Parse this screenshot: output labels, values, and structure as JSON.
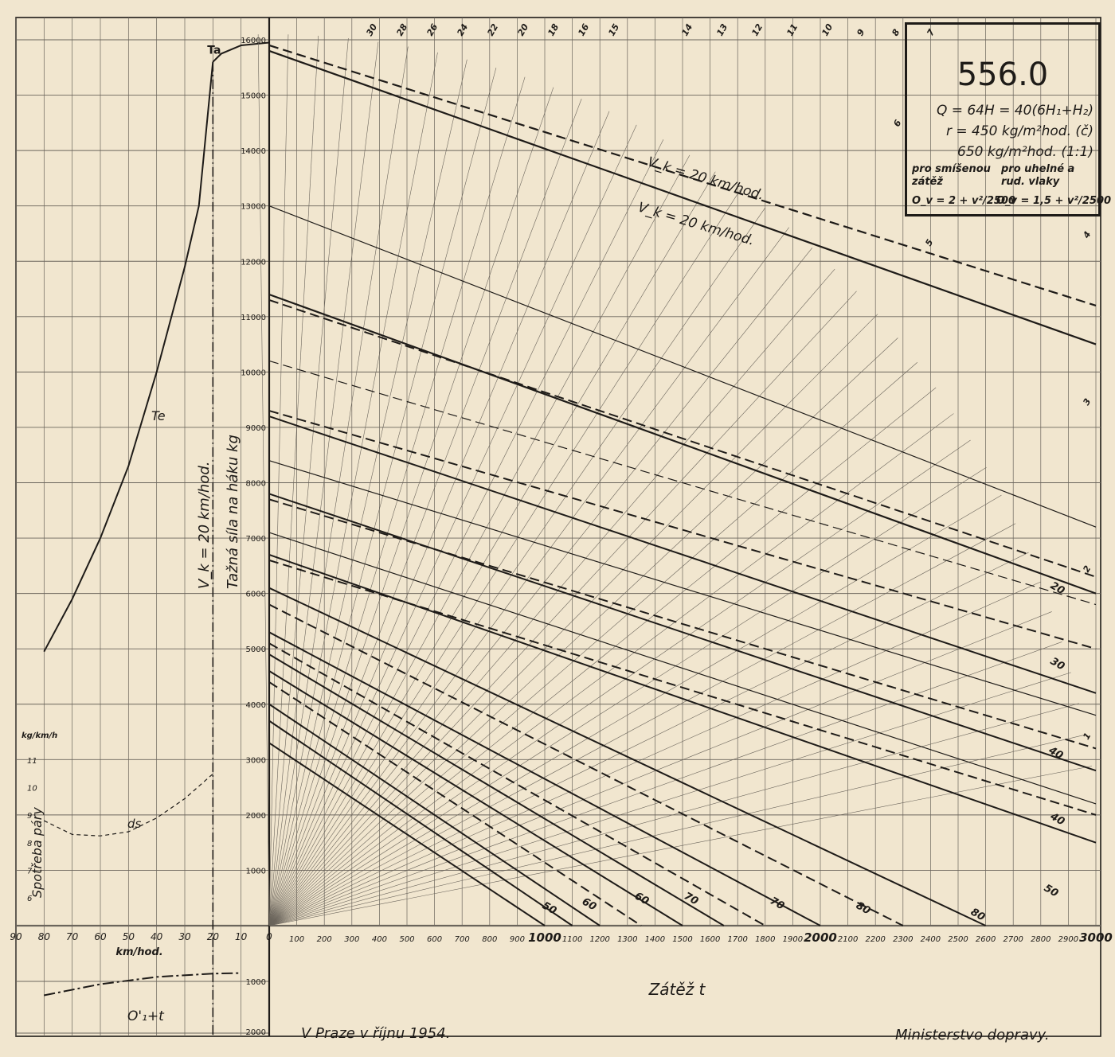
{
  "title_box": {
    "number": "556.0",
    "line1": "Q = 64H = 40(6H₁+H₂)",
    "line2": "r = 450 kg/m²hod. (č)",
    "line3": "650 kg/m²hod. (1:1)",
    "left_head1": "pro smíšenou",
    "left_head2": "zátěž",
    "left_formula": "O_v = 2 + v²/2500",
    "right_head1": "pro uhelné a",
    "right_head2": "rud. vlaky",
    "right_formula": "O_v = 1,5 + v²/2500"
  },
  "footer": {
    "left": "V Praze v říjnu 1954.",
    "right": "Ministerstvo dopravy."
  },
  "colors": {
    "paper": "#f1e6cf",
    "ink": "#1e1b18",
    "grid": "#6b655c",
    "watermark": "#d9ccb1"
  },
  "chart_data": {
    "type": "line",
    "description_left": {
      "x_ticks": [
        "90",
        "80",
        "70",
        "60",
        "50",
        "40",
        "30",
        "20",
        "10",
        "0"
      ],
      "x_label": "km/hod.",
      "y_ticks": [
        "16000",
        "15000",
        "14000",
        "13000",
        "12000",
        "11000",
        "10000",
        "9000",
        "8000",
        "7000",
        "6000",
        "5000",
        "4000",
        "3000",
        "2000",
        "1000"
      ],
      "y_below_ticks": [
        "1000",
        "2000"
      ],
      "vertical_label_1": "V_k = 20 km/hod.",
      "vertical_label_2": "Tažná síla na háku kg",
      "Te_label": "Te",
      "Ta_label": "Ta",
      "Te_curve": [
        {
          "v": 80,
          "kg": 4950
        },
        {
          "v": 70,
          "kg": 5900
        },
        {
          "v": 60,
          "kg": 7000
        },
        {
          "v": 50,
          "kg": 8300
        },
        {
          "v": 40,
          "kg": 10000
        },
        {
          "v": 30,
          "kg": 11900
        },
        {
          "v": 25,
          "kg": 13000
        },
        {
          "v": 20,
          "kg": 15600
        }
      ],
      "Ta_curve": [
        {
          "v": 20,
          "kg": 15600
        },
        {
          "v": 17,
          "kg": 15750
        },
        {
          "v": 10,
          "kg": 15900
        },
        {
          "v": 0,
          "kg": 15950
        }
      ],
      "steam_label": "Spotřeba páry",
      "steam_unit": "kg/km/h",
      "steam_ticks": [
        "11",
        "10",
        "9",
        "8",
        "7",
        "6"
      ],
      "ds_label": "ds",
      "ds_curve": [
        {
          "v": 80,
          "val": 8.8
        },
        {
          "v": 70,
          "val": 8.3
        },
        {
          "v": 60,
          "val": 8.25
        },
        {
          "v": 50,
          "val": 8.4
        },
        {
          "v": 40,
          "val": 8.9
        },
        {
          "v": 30,
          "val": 9.6
        },
        {
          "v": 20,
          "val": 10.5
        }
      ],
      "O_label": "O'₁+t",
      "O_curve": [
        {
          "v": 80,
          "kg": 1250
        },
        {
          "v": 60,
          "kg": 1050
        },
        {
          "v": 40,
          "kg": 920
        },
        {
          "v": 20,
          "kg": 860
        },
        {
          "v": 10,
          "kg": 850
        }
      ]
    },
    "load": {
      "x_label": "Zátěž t",
      "x_ticks": [
        "100",
        "200",
        "300",
        "400",
        "500",
        "600",
        "700",
        "800",
        "900",
        "1000",
        "1100",
        "1200",
        "1300",
        "1400",
        "1500",
        "1600",
        "1700",
        "1800",
        "1900",
        "2000",
        "2100",
        "2200",
        "2300",
        "2400",
        "2500",
        "2600",
        "2700",
        "2800",
        "2900",
        "3000"
      ],
      "xlim": [
        0,
        3000
      ],
      "ylim": [
        0,
        16000
      ],
      "gradient_labels": [
        "30",
        "28",
        "26",
        "24",
        "22",
        "20",
        "18",
        "16",
        "15",
        "14",
        "13",
        "12",
        "11",
        "10",
        "9",
        "8",
        "7",
        "6",
        "5",
        "4",
        "3",
        "2",
        "1"
      ],
      "speed_labels": [
        "20",
        "30",
        "40",
        "40",
        "50",
        "80",
        "80",
        "70",
        "70",
        "60",
        "60",
        "50"
      ],
      "vk_label_1": "V_k = 20 km/hod.",
      "vk_label_2": "V_k = 20 km/hod."
    }
  }
}
